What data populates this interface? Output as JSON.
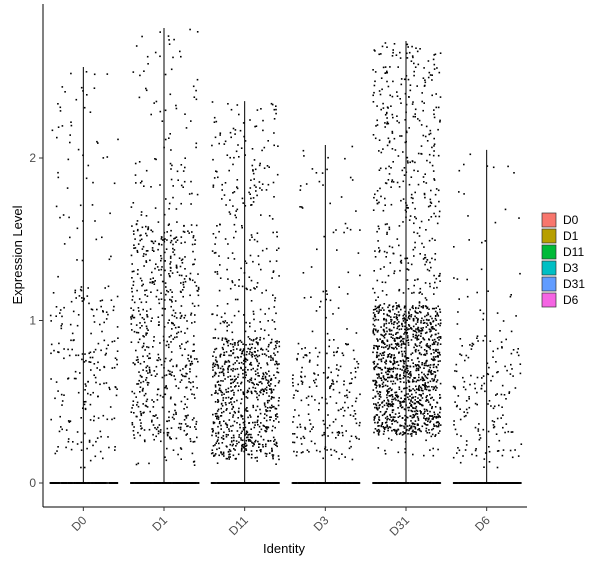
{
  "chart_data": {
    "type": "scatter",
    "subtype": "violin-jitter",
    "title": "",
    "xlabel": "Identity",
    "ylabel": "Expression Level",
    "categories": [
      "D0",
      "D1",
      "D11",
      "D3",
      "D31",
      "D6"
    ],
    "legend_labels": [
      "D0",
      "D1",
      "D11",
      "D3",
      "D31",
      "D6"
    ],
    "legend_colors": [
      "#F8766D",
      "#B79F00",
      "#00BA38",
      "#00BFC4",
      "#619CFF",
      "#F564E3"
    ],
    "legend_position": "right",
    "ylim": [
      -0.15,
      2.9
    ],
    "yticks": [
      0,
      1,
      2
    ],
    "grid": false,
    "series": [
      {
        "category": "D0",
        "max": 2.56,
        "nonzero_points": 260,
        "zero_points": 260,
        "nonzero_range": [
          0.1,
          2.56
        ],
        "bulk": [
          0.2,
          1.2
        ]
      },
      {
        "category": "D1",
        "max": 2.8,
        "nonzero_points": 700,
        "zero_points": 300,
        "nonzero_range": [
          0.1,
          2.8
        ],
        "bulk": [
          0.25,
          1.6
        ]
      },
      {
        "category": "D11",
        "max": 2.35,
        "nonzero_points": 950,
        "zero_points": 300,
        "nonzero_range": [
          0.12,
          2.35
        ],
        "bulk": [
          0.15,
          0.9
        ]
      },
      {
        "category": "D3",
        "max": 2.08,
        "nonzero_points": 260,
        "zero_points": 300,
        "nonzero_range": [
          0.12,
          2.08
        ],
        "bulk": [
          0.15,
          0.9
        ]
      },
      {
        "category": "D31",
        "max": 2.72,
        "nonzero_points": 1600,
        "zero_points": 300,
        "nonzero_range": [
          0.15,
          2.72
        ],
        "bulk": [
          0.3,
          1.1
        ]
      },
      {
        "category": "D6",
        "max": 2.05,
        "nonzero_points": 200,
        "zero_points": 300,
        "nonzero_range": [
          0.1,
          2.05
        ],
        "bulk": [
          0.15,
          0.9
        ]
      }
    ]
  }
}
